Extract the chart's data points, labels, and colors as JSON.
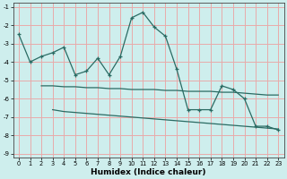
{
  "xlabel": "Humidex (Indice chaleur)",
  "ylabel": "",
  "xlim": [
    -0.5,
    23.5
  ],
  "ylim": [
    -9.2,
    -0.8
  ],
  "yticks": [
    -9,
    -8,
    -7,
    -6,
    -5,
    -4,
    -3,
    -2,
    -1
  ],
  "xticks": [
    0,
    1,
    2,
    3,
    4,
    5,
    6,
    7,
    8,
    9,
    10,
    11,
    12,
    13,
    14,
    15,
    16,
    17,
    18,
    19,
    20,
    21,
    22,
    23
  ],
  "bg_color": "#ceeeed",
  "grid_color": "#e8aaaa",
  "line_color": "#2a6b63",
  "series1_x": [
    0,
    1,
    2,
    3,
    4,
    5,
    6,
    7,
    8,
    9,
    10,
    11,
    12,
    13,
    14,
    15,
    16,
    17,
    18,
    19,
    20,
    21,
    22,
    23
  ],
  "series1_y": [
    -2.5,
    -4.0,
    -3.7,
    -3.5,
    -3.2,
    -4.7,
    -4.5,
    -3.8,
    -4.7,
    -3.7,
    -1.6,
    -1.3,
    -2.1,
    -2.6,
    -4.4,
    -6.6,
    -6.6,
    -6.6,
    -5.3,
    -5.5,
    -6.0,
    -7.5,
    -7.5,
    -7.7
  ],
  "series2_x": [
    2,
    3,
    4,
    5,
    6,
    7,
    8,
    9,
    10,
    11,
    12,
    13,
    14,
    15,
    16,
    17,
    18,
    19,
    20,
    21,
    22,
    23
  ],
  "series2_y": [
    -5.3,
    -5.3,
    -5.35,
    -5.35,
    -5.4,
    -5.4,
    -5.45,
    -5.45,
    -5.5,
    -5.5,
    -5.5,
    -5.55,
    -5.55,
    -5.6,
    -5.6,
    -5.6,
    -5.65,
    -5.65,
    -5.7,
    -5.75,
    -5.8,
    -5.8
  ],
  "series3_x": [
    3,
    4,
    5,
    6,
    7,
    8,
    9,
    10,
    11,
    12,
    13,
    14,
    15,
    16,
    17,
    18,
    19,
    20,
    21,
    22,
    23
  ],
  "series3_y": [
    -6.6,
    -6.7,
    -6.75,
    -6.8,
    -6.85,
    -6.9,
    -6.95,
    -7.0,
    -7.05,
    -7.1,
    -7.15,
    -7.2,
    -7.25,
    -7.3,
    -7.35,
    -7.4,
    -7.45,
    -7.5,
    -7.55,
    -7.6,
    -7.65
  ]
}
